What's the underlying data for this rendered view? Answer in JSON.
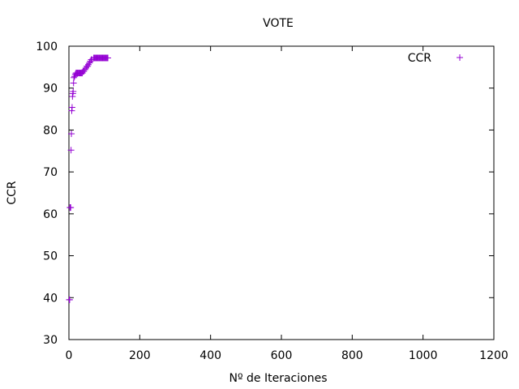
{
  "chart_data": {
    "type": "scatter",
    "title": "VOTE",
    "xlabel": "Nº de Iteraciones",
    "ylabel": "CCR",
    "xlim": [
      0,
      1200
    ],
    "ylim": [
      30,
      100
    ],
    "xticks": [
      0,
      200,
      400,
      600,
      800,
      1000,
      1200
    ],
    "yticks": [
      30,
      40,
      50,
      60,
      70,
      80,
      90,
      100
    ],
    "grid": false,
    "legend": {
      "position": "top-right",
      "entries": [
        "CCR"
      ]
    },
    "series": [
      {
        "name": "CCR",
        "color": "#9400d3",
        "marker": "plus",
        "points": [
          [
            1,
            39.5
          ],
          [
            2,
            39.5
          ],
          [
            3,
            61.5
          ],
          [
            4,
            61.5
          ],
          [
            5,
            61.5
          ],
          [
            6,
            75.2
          ],
          [
            7,
            79.1
          ],
          [
            8,
            84.6
          ],
          [
            9,
            85.4
          ],
          [
            10,
            88.0
          ],
          [
            11,
            88.7
          ],
          [
            12,
            89.2
          ],
          [
            13,
            91.2
          ],
          [
            14,
            92.5
          ],
          [
            16,
            92.8
          ],
          [
            18,
            93.3
          ],
          [
            20,
            93.6
          ],
          [
            22,
            93.6
          ],
          [
            24,
            93.6
          ],
          [
            26,
            93.6
          ],
          [
            28,
            93.6
          ],
          [
            30,
            93.6
          ],
          [
            32,
            93.6
          ],
          [
            34,
            93.6
          ],
          [
            36,
            93.6
          ],
          [
            38,
            93.6
          ],
          [
            40,
            94.0
          ],
          [
            42,
            94.0
          ],
          [
            45,
            94.4
          ],
          [
            48,
            94.8
          ],
          [
            50,
            95.2
          ],
          [
            53,
            95.2
          ],
          [
            55,
            95.6
          ],
          [
            58,
            96.0
          ],
          [
            60,
            96.4
          ],
          [
            63,
            96.8
          ],
          [
            66,
            96.8
          ],
          [
            70,
            97.2
          ],
          [
            72,
            97.2
          ],
          [
            74,
            97.2
          ],
          [
            76,
            97.2
          ],
          [
            78,
            97.2
          ],
          [
            80,
            97.2
          ],
          [
            82,
            97.2
          ],
          [
            84,
            97.2
          ],
          [
            86,
            97.2
          ],
          [
            88,
            97.2
          ],
          [
            90,
            97.2
          ],
          [
            92,
            97.2
          ],
          [
            94,
            97.2
          ],
          [
            96,
            97.2
          ],
          [
            98,
            97.2
          ],
          [
            100,
            97.2
          ],
          [
            102,
            97.2
          ],
          [
            104,
            97.2
          ],
          [
            106,
            97.2
          ],
          [
            108,
            97.2
          ],
          [
            110,
            97.2
          ]
        ]
      }
    ]
  }
}
